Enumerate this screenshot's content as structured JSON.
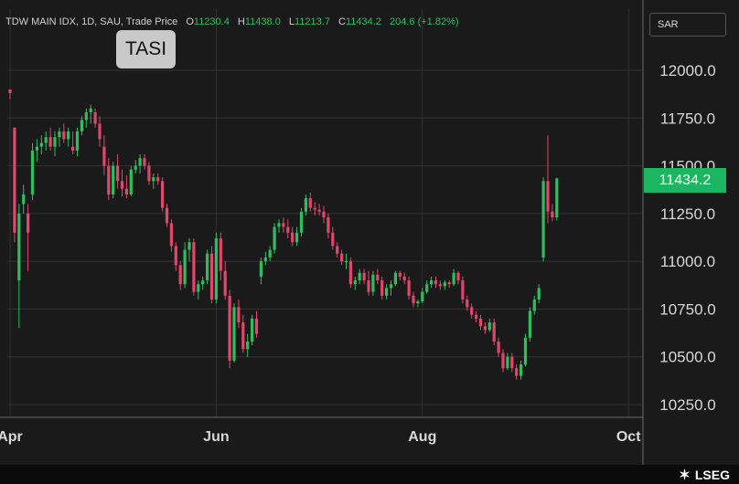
{
  "header": {
    "symbol": "TDW MAIN IDX, 1D, SAU, Trade Price",
    "o_label": "O",
    "o_value": "11230.4",
    "h_label": "H",
    "h_value": "11438.0",
    "l_label": "L",
    "l_value": "11213.7",
    "c_label": "C",
    "c_value": "11434.2",
    "change": "204.6 (+1.82%)"
  },
  "badge": "TASI",
  "currency": "SAR",
  "last_price": "11434.2",
  "brand": "LSEG",
  "colors": {
    "up": "#2ebd5f",
    "down": "#e0476a",
    "background": "#1a1a1a",
    "grid": "#333333"
  },
  "chart_data": {
    "type": "candlestick",
    "y_ticks": [
      "12000.0",
      "11750.0",
      "11500.0",
      "11250.0",
      "11000.0",
      "10750.0",
      "10500.0",
      "10250.0"
    ],
    "y_tick_values": [
      12000,
      11750,
      11500,
      11250,
      11000,
      10750,
      10500,
      10250
    ],
    "ylim": [
      10200,
      12180
    ],
    "x_ticks": [
      "Apr",
      "Jun",
      "Aug",
      "Oct"
    ],
    "x_tick_index": [
      0,
      46,
      92,
      138
    ],
    "candles": [
      [
        11900,
        11900,
        11850,
        11880
      ],
      [
        11700,
        11700,
        11100,
        11150
      ],
      [
        10900,
        11300,
        10650,
        11250
      ],
      [
        11300,
        11400,
        11250,
        11350
      ],
      [
        11250,
        11300,
        10950,
        11150
      ],
      [
        11350,
        11620,
        11320,
        11580
      ],
      [
        11580,
        11640,
        11520,
        11600
      ],
      [
        11600,
        11660,
        11560,
        11620
      ],
      [
        11620,
        11680,
        11580,
        11650
      ],
      [
        11650,
        11700,
        11580,
        11600
      ],
      [
        11600,
        11680,
        11550,
        11650
      ],
      [
        11650,
        11700,
        11600,
        11680
      ],
      [
        11680,
        11720,
        11620,
        11640
      ],
      [
        11640,
        11700,
        11600,
        11680
      ],
      [
        11600,
        11680,
        11560,
        11580
      ],
      [
        11580,
        11700,
        11550,
        11680
      ],
      [
        11680,
        11760,
        11660,
        11740
      ],
      [
        11740,
        11800,
        11700,
        11780
      ],
      [
        11780,
        11820,
        11720,
        11800
      ],
      [
        11780,
        11800,
        11700,
        11720
      ],
      [
        11720,
        11760,
        11600,
        11640
      ],
      [
        11600,
        11660,
        11450,
        11500
      ],
      [
        11500,
        11540,
        11320,
        11350
      ],
      [
        11350,
        11520,
        11330,
        11500
      ],
      [
        11500,
        11560,
        11380,
        11420
      ],
      [
        11420,
        11480,
        11340,
        11380
      ],
      [
        11380,
        11450,
        11330,
        11350
      ],
      [
        11350,
        11500,
        11340,
        11480
      ],
      [
        11480,
        11530,
        11460,
        11500
      ],
      [
        11500,
        11560,
        11460,
        11540
      ],
      [
        11540,
        11560,
        11480,
        11500
      ],
      [
        11500,
        11520,
        11400,
        11420
      ],
      [
        11420,
        11460,
        11380,
        11440
      ],
      [
        11440,
        11460,
        11400,
        11420
      ],
      [
        11420,
        11440,
        11260,
        11280
      ],
      [
        11280,
        11300,
        11180,
        11200
      ],
      [
        11200,
        11220,
        11050,
        11080
      ],
      [
        11080,
        11100,
        10950,
        10980
      ],
      [
        10980,
        11000,
        10850,
        10880
      ],
      [
        10880,
        11100,
        10860,
        11060
      ],
      [
        11060,
        11120,
        11000,
        11100
      ],
      [
        11100,
        11120,
        10820,
        10840
      ],
      [
        10840,
        10900,
        10800,
        10880
      ],
      [
        10880,
        10920,
        10850,
        10900
      ],
      [
        10900,
        11060,
        10880,
        11040
      ],
      [
        11040,
        11080,
        10780,
        10800
      ],
      [
        10800,
        11150,
        10780,
        11120
      ],
      [
        11120,
        11150,
        10900,
        10950
      ],
      [
        10950,
        11000,
        10800,
        10820
      ],
      [
        10820,
        10850,
        10440,
        10480
      ],
      [
        10480,
        10780,
        10470,
        10760
      ],
      [
        10760,
        10800,
        10650,
        10680
      ],
      [
        10680,
        10720,
        10520,
        10540
      ],
      [
        10540,
        10620,
        10500,
        10580
      ],
      [
        10580,
        10720,
        10560,
        10700
      ],
      [
        10700,
        10740,
        10600,
        10620
      ],
      [
        10920,
        11020,
        10880,
        11000
      ],
      [
        11000,
        11050,
        10980,
        11020
      ],
      [
        11020,
        11080,
        11000,
        11060
      ],
      [
        11060,
        11200,
        11040,
        11180
      ],
      [
        11180,
        11220,
        11150,
        11200
      ],
      [
        11200,
        11230,
        11150,
        11180
      ],
      [
        11180,
        11220,
        11120,
        11150
      ],
      [
        11150,
        11180,
        11080,
        11100
      ],
      [
        11100,
        11180,
        11080,
        11150
      ],
      [
        11150,
        11280,
        11130,
        11260
      ],
      [
        11260,
        11350,
        11240,
        11330
      ],
      [
        11330,
        11360,
        11260,
        11280
      ],
      [
        11280,
        11310,
        11240,
        11270
      ],
      [
        11270,
        11300,
        11240,
        11260
      ],
      [
        11260,
        11290,
        11200,
        11230
      ],
      [
        11230,
        11250,
        11120,
        11150
      ],
      [
        11150,
        11180,
        11060,
        11080
      ],
      [
        11080,
        11100,
        11020,
        11040
      ],
      [
        11040,
        11060,
        10980,
        11000
      ],
      [
        11000,
        11040,
        10960,
        11000
      ],
      [
        11000,
        11020,
        10860,
        10880
      ],
      [
        10880,
        10920,
        10850,
        10900
      ],
      [
        10900,
        10960,
        10880,
        10940
      ],
      [
        10940,
        10960,
        10880,
        10900
      ],
      [
        10900,
        10950,
        10820,
        10840
      ],
      [
        10840,
        10950,
        10820,
        10930
      ],
      [
        10930,
        10960,
        10880,
        10900
      ],
      [
        10900,
        10920,
        10800,
        10820
      ],
      [
        10820,
        10880,
        10800,
        10860
      ],
      [
        10860,
        10900,
        10820,
        10880
      ],
      [
        10880,
        10950,
        10870,
        10940
      ],
      [
        10940,
        10950,
        10900,
        10920
      ],
      [
        10920,
        10940,
        10880,
        10900
      ],
      [
        10900,
        10920,
        10800,
        10820
      ],
      [
        10820,
        10840,
        10760,
        10780
      ],
      [
        10780,
        10800,
        10760,
        10790
      ],
      [
        10790,
        10860,
        10780,
        10840
      ],
      [
        10840,
        10900,
        10830,
        10880
      ],
      [
        10880,
        10920,
        10860,
        10900
      ],
      [
        10900,
        10920,
        10860,
        10880
      ],
      [
        10880,
        10900,
        10850,
        10870
      ],
      [
        10870,
        10900,
        10850,
        10890
      ],
      [
        10890,
        10900,
        10860,
        10880
      ],
      [
        10880,
        10960,
        10870,
        10940
      ],
      [
        10940,
        10950,
        10880,
        10900
      ],
      [
        10900,
        10920,
        10780,
        10800
      ],
      [
        10800,
        10820,
        10740,
        10760
      ],
      [
        10760,
        10780,
        10700,
        10720
      ],
      [
        10720,
        10740,
        10680,
        10700
      ],
      [
        10700,
        10720,
        10640,
        10660
      ],
      [
        10660,
        10680,
        10620,
        10640
      ],
      [
        10640,
        10700,
        10630,
        10680
      ],
      [
        10680,
        10700,
        10560,
        10580
      ],
      [
        10580,
        10600,
        10500,
        10520
      ],
      [
        10520,
        10540,
        10420,
        10440
      ],
      [
        10440,
        10520,
        10430,
        10500
      ],
      [
        10500,
        10520,
        10420,
        10440
      ],
      [
        10440,
        10460,
        10380,
        10400
      ],
      [
        10400,
        10480,
        10380,
        10460
      ],
      [
        10460,
        10620,
        10450,
        10600
      ],
      [
        10600,
        10760,
        10580,
        10740
      ],
      [
        10740,
        10820,
        10720,
        10800
      ],
      [
        10800,
        10880,
        10780,
        10860
      ],
      [
        11020,
        11440,
        11000,
        11420
      ],
      [
        11420,
        11660,
        11200,
        11260
      ],
      [
        11260,
        11300,
        11210,
        11230
      ],
      [
        11230,
        11438,
        11214,
        11434
      ]
    ]
  }
}
